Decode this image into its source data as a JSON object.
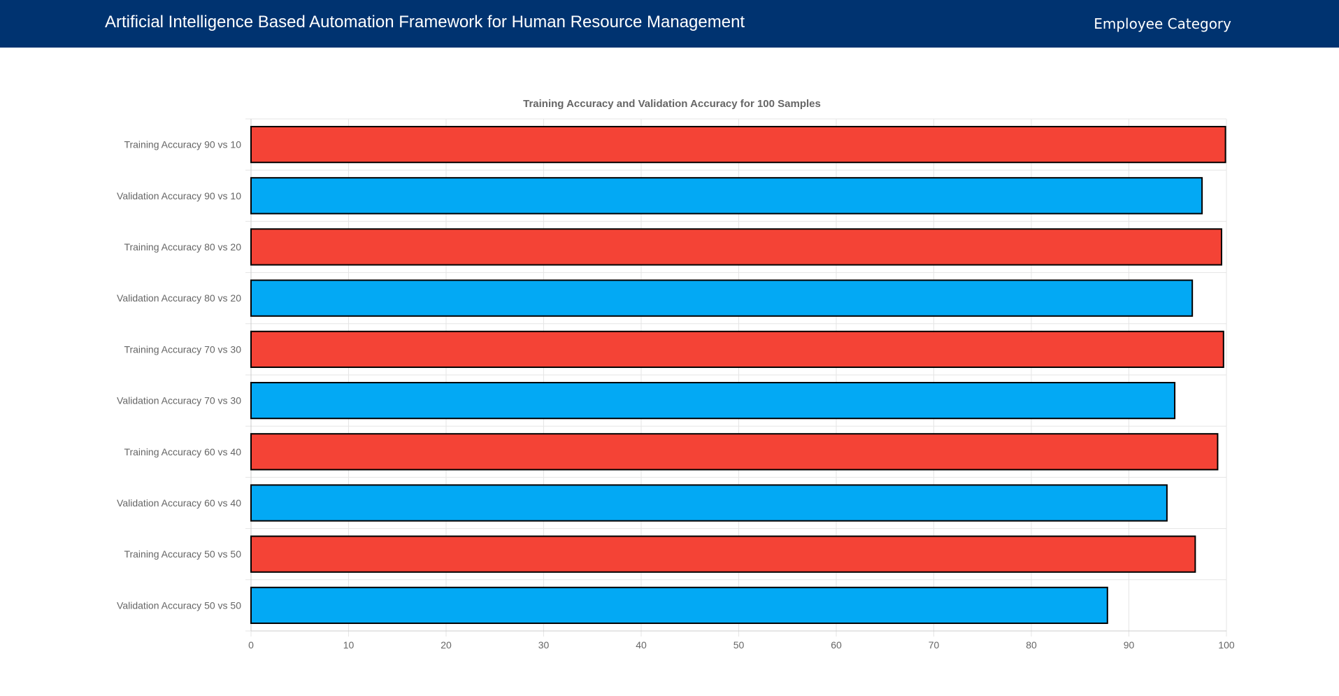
{
  "navbar": {
    "brand": "Artificial Intelligence Based Automation Framework for Human Resource Management",
    "link_employee_category": "Employee Category"
  },
  "colors": {
    "navbar_bg": "#003370",
    "training": "#f44336",
    "validation": "#03a9f4",
    "bar_border": "#000000",
    "grid": "#e5e5e5",
    "text": "#666666"
  },
  "chart_data": {
    "type": "bar",
    "orientation": "horizontal",
    "title": "Training Accuracy and Validation Accuracy for 100 Samples",
    "categories": [
      "Training Accuracy 90 vs 10",
      "Validation Accuracy 90 vs 10",
      "Training Accuracy 80 vs 20",
      "Validation Accuracy 80 vs 20",
      "Training Accuracy 70 vs 30",
      "Validation Accuracy 70 vs 30",
      "Training Accuracy 60 vs 40",
      "Validation Accuracy 60 vs 40",
      "Training Accuracy 50 vs 50",
      "Validation Accuracy 50 vs 50"
    ],
    "values": [
      99.9,
      97.5,
      99.5,
      96.5,
      99.7,
      94.7,
      99.1,
      93.9,
      96.8,
      87.8
    ],
    "bar_colors": [
      "#f44336",
      "#03a9f4",
      "#f44336",
      "#03a9f4",
      "#f44336",
      "#03a9f4",
      "#f44336",
      "#03a9f4",
      "#f44336",
      "#03a9f4"
    ],
    "xlabel": "",
    "ylabel": "",
    "xlim": [
      0,
      100
    ],
    "xticks": [
      0,
      10,
      20,
      30,
      40,
      50,
      60,
      70,
      80,
      90,
      100
    ],
    "grid": true,
    "legend": "none"
  }
}
